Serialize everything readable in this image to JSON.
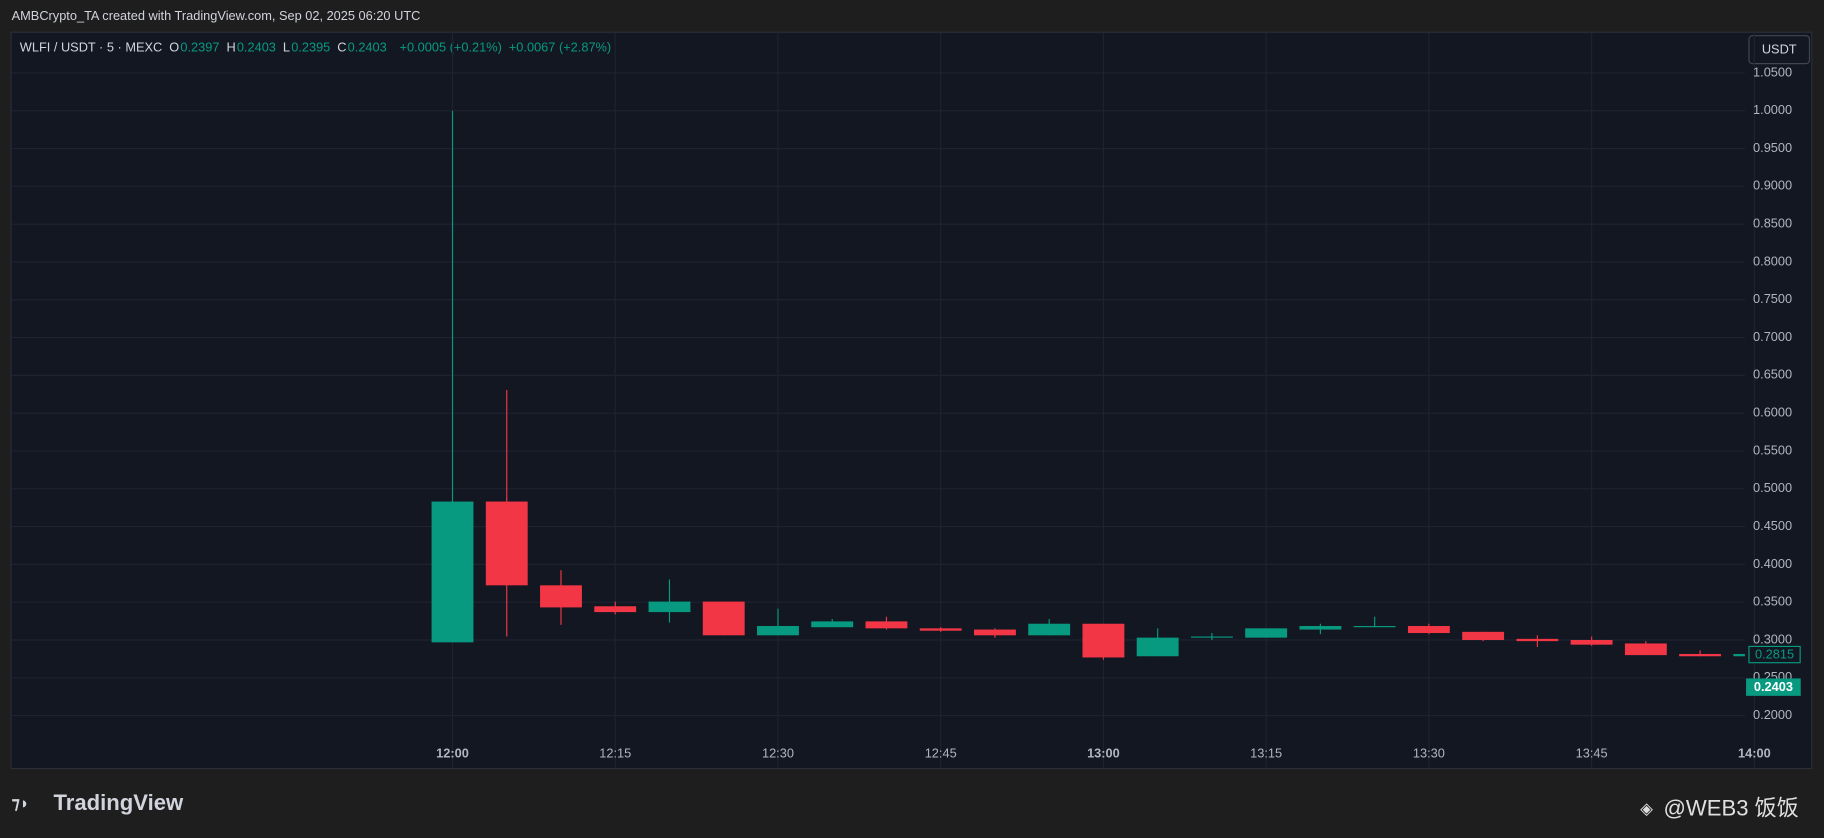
{
  "header": {
    "caption": "AMBCrypto_TA created with TradingView.com, Sep 02, 2025 06:20 UTC",
    "symbol": "WLFI / USDT · 5 · MEXC",
    "ohlc": [
      "O",
      "0.2397",
      "H",
      "0.2403",
      "L",
      "0.2395",
      "C",
      "0.2403"
    ],
    "change": "+0.0005 (+0.21%)",
    "change2": "+0.0067 (+2.87%)",
    "currency": "USDT"
  },
  "price_labels": [
    "0.2815",
    "0.2403"
  ],
  "footer": {
    "logo": "TradingView",
    "watermark": "@WEB3 饭饭"
  },
  "chart_data": {
    "type": "candlestick",
    "categories": [
      "12:00",
      null,
      null,
      "12:15",
      null,
      null,
      "12:30",
      null,
      null,
      "12:45",
      null,
      null,
      "13:00",
      null,
      null,
      "13:15",
      null,
      null,
      "13:30",
      null,
      null,
      "13:45",
      null,
      null,
      "14:00"
    ],
    "open": [
      0.2969,
      0.4831,
      0.3723,
      0.3446,
      0.3369,
      0.3508,
      0.3062,
      0.3169,
      0.3246,
      0.3154,
      0.3138,
      0.3062,
      0.3215,
      0.2785,
      0.3031,
      0.3031,
      0.3138,
      0.3169,
      0.3185,
      0.3108,
      0.3015,
      0.3,
      0.2954,
      0.2815,
      0.2785
    ],
    "high": [
      1.0,
      0.6308,
      0.3923,
      0.3508,
      0.38,
      0.3508,
      0.3415,
      0.3277,
      0.3308,
      0.317,
      0.3154,
      0.3277,
      0.3215,
      0.3154,
      0.3092,
      0.3154,
      0.3215,
      0.3308,
      0.3215,
      0.3108,
      0.3062,
      0.3046,
      0.2985,
      0.2862,
      0.2815
    ],
    "low": [
      0.2969,
      0.3046,
      0.32,
      0.3338,
      0.323,
      0.3062,
      0.3062,
      0.3169,
      0.3138,
      0.3108,
      0.303,
      0.3062,
      0.2738,
      0.2785,
      0.3,
      0.3031,
      0.3077,
      0.3169,
      0.3077,
      0.2985,
      0.2908,
      0.2923,
      0.28,
      0.2785,
      0.2785
    ],
    "close": [
      0.4831,
      0.3723,
      0.3431,
      0.3369,
      0.3508,
      0.3062,
      0.3185,
      0.3246,
      0.3154,
      0.3123,
      0.3062,
      0.3215,
      0.2769,
      0.3031,
      0.3046,
      0.3154,
      0.3185,
      0.3185,
      0.3092,
      0.3,
      0.2985,
      0.2938,
      0.28,
      0.2785,
      0.2815
    ],
    "up_color": "#089981",
    "down_color": "#f23645",
    "ylim": [
      0.1738,
      1.1031
    ],
    "yticks": [
      {
        "value": 0.2,
        "label": "0.2000"
      },
      {
        "value": 0.25,
        "label": "0.2500"
      },
      {
        "value": 0.3,
        "label": "0.3000"
      },
      {
        "value": 0.35,
        "label": "0.3500"
      },
      {
        "value": 0.4,
        "label": "0.4000"
      },
      {
        "value": 0.45,
        "label": "0.4500"
      },
      {
        "value": 0.5,
        "label": "0.5000"
      },
      {
        "value": 0.55,
        "label": "0.5500"
      },
      {
        "value": 0.6,
        "label": "0.6000"
      },
      {
        "value": 0.65,
        "label": "0.6500"
      },
      {
        "value": 0.7,
        "label": "0.7000"
      },
      {
        "value": 0.75,
        "label": "0.7500"
      },
      {
        "value": 0.8,
        "label": "0.8000"
      },
      {
        "value": 0.85,
        "label": "0.8500"
      },
      {
        "value": 0.9,
        "label": "0.9000"
      },
      {
        "value": 0.95,
        "label": "0.9500"
      },
      {
        "value": 1.0,
        "label": "1.0000"
      },
      {
        "value": 1.05,
        "label": "1.0500"
      }
    ],
    "grid": true
  }
}
